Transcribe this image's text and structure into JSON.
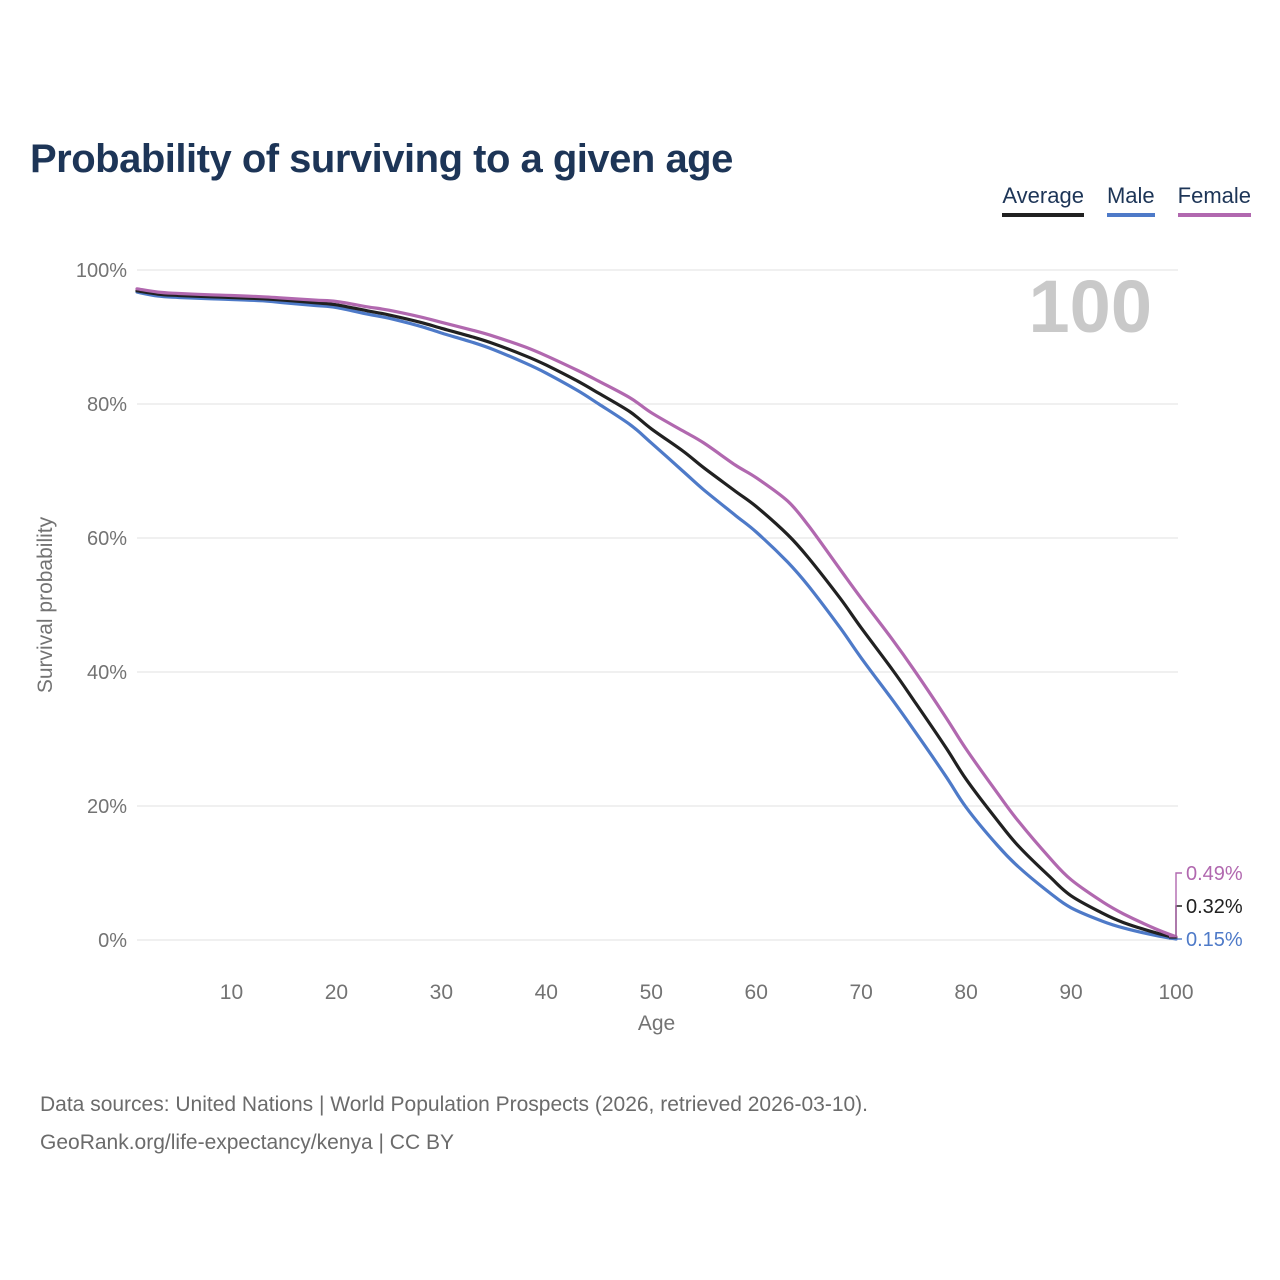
{
  "title": "Probability of surviving to a given age",
  "watermark": "100",
  "legend": {
    "items": [
      {
        "label": "Average",
        "color": "#212121"
      },
      {
        "label": "Male",
        "color": "#4e7ac8"
      },
      {
        "label": "Female",
        "color": "#b168af"
      }
    ]
  },
  "footer": {
    "line1": "Data sources: United Nations | World Population Prospects (2026, retrieved 2026-03-10).",
    "line2": "GeoRank.org/life-expectancy/kenya | CC BY"
  },
  "colors": {
    "title_text": "#1d3557",
    "axis_text": "#737373",
    "grid_line": "#e2e2e2",
    "watermark_text": "#c9c9c9",
    "footer_text": "#6b6b6b",
    "background": "#ffffff"
  },
  "chart_data": {
    "type": "line",
    "title": "Probability of surviving to a given age",
    "xlabel": "Age",
    "ylabel": "Survival probability",
    "xlim": [
      1,
      100
    ],
    "ylim": [
      0,
      100
    ],
    "x_ticks": [
      10,
      20,
      30,
      40,
      50,
      60,
      70,
      80,
      90,
      100
    ],
    "y_ticks": [
      0,
      20,
      40,
      60,
      80,
      100
    ],
    "y_tick_suffix": "%",
    "grid": "horizontal",
    "legend_position": "top-right",
    "x": [
      1,
      3,
      5,
      8,
      10,
      13,
      15,
      18,
      20,
      23,
      25,
      28,
      30,
      33,
      35,
      38,
      40,
      43,
      45,
      48,
      50,
      53,
      55,
      58,
      60,
      63,
      65,
      68,
      70,
      73,
      75,
      78,
      80,
      83,
      85,
      88,
      90,
      93,
      95,
      98,
      100
    ],
    "series": [
      {
        "name": "Average",
        "color": "#212121",
        "end_label": "0.32%",
        "values": [
          96.9,
          96.4,
          96.2,
          96.0,
          95.9,
          95.7,
          95.5,
          95.1,
          94.8,
          93.9,
          93.3,
          92.2,
          91.3,
          90.0,
          89.0,
          87.2,
          85.8,
          83.4,
          81.6,
          78.8,
          76.3,
          73.0,
          70.5,
          67.0,
          64.7,
          60.5,
          57.0,
          51.0,
          46.6,
          40.3,
          35.8,
          28.9,
          24.0,
          17.8,
          14.0,
          9.4,
          6.6,
          4.0,
          2.6,
          1.1,
          0.32
        ]
      },
      {
        "name": "Male",
        "color": "#4e7ac8",
        "end_label": "0.15%",
        "values": [
          96.7,
          96.1,
          95.9,
          95.7,
          95.6,
          95.4,
          95.1,
          94.7,
          94.4,
          93.4,
          92.8,
          91.6,
          90.6,
          89.2,
          88.1,
          86.1,
          84.6,
          82.0,
          80.0,
          76.9,
          74.2,
          70.0,
          67.2,
          63.4,
          60.9,
          56.4,
          52.8,
          46.6,
          42.1,
          35.8,
          31.4,
          24.6,
          19.8,
          14.1,
          10.9,
          7.0,
          4.8,
          2.8,
          1.8,
          0.7,
          0.15
        ]
      },
      {
        "name": "Female",
        "color": "#b168af",
        "end_label": "0.49%",
        "values": [
          97.2,
          96.7,
          96.5,
          96.3,
          96.2,
          96.0,
          95.8,
          95.5,
          95.3,
          94.5,
          94.0,
          93.0,
          92.2,
          91.0,
          90.1,
          88.5,
          87.2,
          85.0,
          83.4,
          80.9,
          78.7,
          76.0,
          74.2,
          70.9,
          69.0,
          65.5,
          61.8,
          55.3,
          51.0,
          44.8,
          40.4,
          33.4,
          28.5,
          21.9,
          17.7,
          12.2,
          9.0,
          5.7,
          3.9,
          1.7,
          0.49
        ]
      }
    ]
  }
}
